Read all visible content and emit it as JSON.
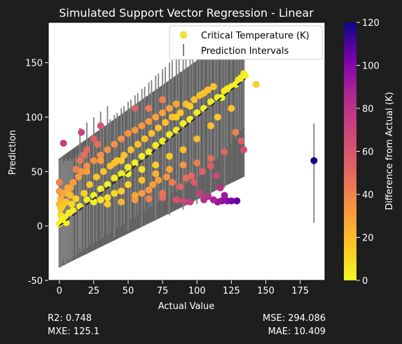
{
  "chart_data": {
    "type": "scatter",
    "title": "Simulated Support Vector Regression - Linear",
    "xlabel": "Actual Value",
    "ylabel": "Prediction",
    "xlim": [
      -8,
      193
    ],
    "ylim": [
      -50,
      187
    ],
    "xticks": [
      0,
      25,
      50,
      75,
      100,
      125,
      150,
      175
    ],
    "yticks": [
      -50,
      0,
      50,
      100,
      150
    ],
    "grid": false,
    "legend_position": "top-right",
    "legend": [
      {
        "label": "Critical Temperature (K)",
        "marker": "circle",
        "color": "#f0e040"
      },
      {
        "label": "Prediction Intervals",
        "marker": "vertical-line",
        "color": "#888888"
      }
    ],
    "reference_line": {
      "style": "dashed",
      "color": "#222222",
      "x": [
        0,
        135
      ],
      "y": [
        0,
        135
      ]
    },
    "colorbar": {
      "label": "Difference from Actual (K)",
      "min": 0,
      "max": 120,
      "ticks": [
        0,
        20,
        40,
        60,
        80,
        100,
        120
      ],
      "colormap": "plasma_r"
    },
    "points": [
      [
        0,
        2,
        2
      ],
      [
        1,
        10,
        9
      ],
      [
        0,
        20,
        20
      ],
      [
        1,
        25,
        24
      ],
      [
        2,
        18,
        16
      ],
      [
        3,
        30,
        27
      ],
      [
        4,
        8,
        4
      ],
      [
        5,
        22,
        17
      ],
      [
        6,
        35,
        29
      ],
      [
        7,
        12,
        5
      ],
      [
        8,
        28,
        20
      ],
      [
        10,
        40,
        30
      ],
      [
        10,
        14,
        4
      ],
      [
        12,
        25,
        13
      ],
      [
        14,
        45,
        31
      ],
      [
        15,
        18,
        3
      ],
      [
        16,
        50,
        34
      ],
      [
        18,
        30,
        12
      ],
      [
        20,
        24,
        4
      ],
      [
        20,
        55,
        35
      ],
      [
        22,
        38,
        16
      ],
      [
        25,
        28,
        3
      ],
      [
        25,
        60,
        35
      ],
      [
        27,
        45,
        18
      ],
      [
        30,
        34,
        4
      ],
      [
        30,
        65,
        35
      ],
      [
        32,
        50,
        18
      ],
      [
        35,
        38,
        3
      ],
      [
        35,
        70,
        35
      ],
      [
        37,
        55,
        18
      ],
      [
        40,
        44,
        4
      ],
      [
        40,
        75,
        35
      ],
      [
        42,
        60,
        18
      ],
      [
        45,
        48,
        3
      ],
      [
        45,
        80,
        35
      ],
      [
        47,
        65,
        18
      ],
      [
        50,
        54,
        4
      ],
      [
        50,
        85,
        35
      ],
      [
        52,
        70,
        18
      ],
      [
        55,
        58,
        3
      ],
      [
        55,
        88,
        33
      ],
      [
        57,
        75,
        18
      ],
      [
        60,
        64,
        4
      ],
      [
        60,
        92,
        32
      ],
      [
        62,
        80,
        18
      ],
      [
        65,
        68,
        3
      ],
      [
        65,
        96,
        31
      ],
      [
        67,
        85,
        18
      ],
      [
        70,
        74,
        4
      ],
      [
        70,
        100,
        30
      ],
      [
        72,
        90,
        18
      ],
      [
        75,
        78,
        3
      ],
      [
        75,
        104,
        29
      ],
      [
        77,
        95,
        18
      ],
      [
        80,
        84,
        4
      ],
      [
        80,
        108,
        28
      ],
      [
        82,
        100,
        18
      ],
      [
        85,
        88,
        3
      ],
      [
        85,
        112,
        27
      ],
      [
        88,
        104,
        16
      ],
      [
        90,
        94,
        4
      ],
      [
        92,
        112,
        20
      ],
      [
        95,
        98,
        3
      ],
      [
        98,
        116,
        18
      ],
      [
        100,
        104,
        4
      ],
      [
        102,
        120,
        18
      ],
      [
        105,
        108,
        3
      ],
      [
        108,
        125,
        17
      ],
      [
        110,
        114,
        4
      ],
      [
        112,
        128,
        16
      ],
      [
        115,
        118,
        3
      ],
      [
        118,
        118,
        0
      ],
      [
        120,
        124,
        4
      ],
      [
        122,
        126,
        4
      ],
      [
        125,
        128,
        3
      ],
      [
        128,
        130,
        2
      ],
      [
        130,
        134,
        4
      ],
      [
        132,
        136,
        4
      ],
      [
        134,
        140,
        6
      ],
      [
        135,
        138,
        3
      ],
      [
        30,
        24,
        6
      ],
      [
        40,
        30,
        10
      ],
      [
        50,
        38,
        12
      ],
      [
        60,
        42,
        18
      ],
      [
        70,
        48,
        22
      ],
      [
        80,
        52,
        28
      ],
      [
        90,
        56,
        34
      ],
      [
        100,
        58,
        42
      ],
      [
        110,
        62,
        48
      ],
      [
        120,
        68,
        52
      ],
      [
        35,
        20,
        15
      ],
      [
        45,
        22,
        23
      ],
      [
        55,
        24,
        31
      ],
      [
        65,
        25,
        40
      ],
      [
        75,
        26,
        49
      ],
      [
        85,
        24,
        61
      ],
      [
        95,
        22,
        73
      ],
      [
        105,
        24,
        81
      ],
      [
        115,
        22,
        93
      ],
      [
        125,
        23,
        102
      ],
      [
        20,
        50,
        30
      ],
      [
        30,
        60,
        30
      ],
      [
        40,
        58,
        18
      ],
      [
        50,
        48,
        2
      ],
      [
        60,
        52,
        8
      ],
      [
        70,
        56,
        14
      ],
      [
        80,
        64,
        16
      ],
      [
        90,
        70,
        20
      ],
      [
        100,
        80,
        20
      ],
      [
        110,
        92,
        18
      ],
      [
        10,
        40,
        30
      ],
      [
        15,
        60,
        45
      ],
      [
        20,
        70,
        50
      ],
      [
        25,
        80,
        55
      ],
      [
        8,
        35,
        27
      ],
      [
        12,
        52,
        40
      ],
      [
        18,
        65,
        47
      ],
      [
        28,
        75,
        47
      ],
      [
        3,
        76,
        73
      ],
      [
        16,
        86,
        70
      ],
      [
        30,
        92,
        62
      ],
      [
        45,
        60,
        15
      ],
      [
        55,
        108,
        53
      ],
      [
        65,
        108,
        43
      ],
      [
        75,
        116,
        41
      ],
      [
        85,
        100,
        15
      ],
      [
        95,
        110,
        15
      ],
      [
        105,
        122,
        17
      ],
      [
        115,
        100,
        15
      ],
      [
        125,
        108,
        17
      ],
      [
        128,
        86,
        42
      ],
      [
        132,
        78,
        54
      ],
      [
        134,
        70,
        64
      ],
      [
        143,
        130,
        13
      ],
      [
        114,
        46,
        68
      ],
      [
        117,
        35,
        82
      ],
      [
        120,
        28,
        92
      ],
      [
        98,
        40,
        58
      ],
      [
        102,
        30,
        72
      ],
      [
        108,
        27,
        81
      ],
      [
        112,
        24,
        88
      ],
      [
        118,
        23,
        95
      ],
      [
        122,
        23,
        99
      ],
      [
        129,
        23,
        106
      ],
      [
        85,
        24,
        61
      ],
      [
        90,
        23,
        67
      ],
      [
        75,
        30,
        45
      ],
      [
        65,
        33,
        32
      ],
      [
        55,
        28,
        27
      ],
      [
        45,
        32,
        13
      ],
      [
        35,
        26,
        9
      ],
      [
        25,
        22,
        3
      ],
      [
        0,
        32,
        32
      ],
      [
        0,
        40,
        40
      ],
      [
        1,
        16,
        15
      ],
      [
        2,
        6,
        4
      ],
      [
        5,
        3,
        2
      ],
      [
        3,
        20,
        17
      ],
      [
        6,
        30,
        24
      ],
      [
        9,
        20,
        11
      ],
      [
        60,
        30,
        30
      ],
      [
        68,
        38,
        30
      ],
      [
        72,
        42,
        30
      ],
      [
        78,
        45,
        33
      ],
      [
        82,
        40,
        42
      ],
      [
        88,
        36,
        52
      ],
      [
        92,
        44,
        48
      ],
      [
        96,
        46,
        50
      ],
      [
        104,
        50,
        54
      ],
      [
        110,
        55,
        55
      ],
      [
        185,
        60,
        125
      ]
    ],
    "error_bars": {
      "color": "#808080",
      "ranges": [
        [
          0,
          -36,
          60
        ],
        [
          1,
          -38,
          62
        ],
        [
          2,
          -35,
          62
        ],
        [
          3,
          -30,
          58
        ],
        [
          4,
          -36,
          60
        ],
        [
          5,
          -34,
          62
        ],
        [
          6,
          -30,
          60
        ],
        [
          7,
          -33,
          60
        ],
        [
          8,
          -32,
          62
        ],
        [
          9,
          -30,
          60
        ],
        [
          10,
          -28,
          62
        ],
        [
          12,
          -28,
          64
        ],
        [
          14,
          -26,
          66
        ],
        [
          16,
          -24,
          68
        ],
        [
          18,
          -22,
          72
        ],
        [
          20,
          -20,
          76
        ],
        [
          22,
          -18,
          78
        ],
        [
          25,
          -16,
          82
        ],
        [
          27,
          -14,
          84
        ],
        [
          30,
          -12,
          90
        ],
        [
          32,
          -10,
          92
        ],
        [
          35,
          -8,
          96
        ],
        [
          37,
          -6,
          98
        ],
        [
          40,
          -4,
          102
        ],
        [
          42,
          -2,
          104
        ],
        [
          45,
          0,
          108
        ],
        [
          47,
          2,
          110
        ],
        [
          50,
          4,
          114
        ],
        [
          52,
          6,
          116
        ],
        [
          55,
          8,
          120
        ],
        [
          57,
          10,
          122
        ],
        [
          60,
          12,
          126
        ],
        [
          62,
          14,
          128
        ],
        [
          65,
          16,
          132
        ],
        [
          67,
          18,
          134
        ],
        [
          70,
          20,
          138
        ],
        [
          72,
          22,
          140
        ],
        [
          75,
          24,
          144
        ],
        [
          77,
          26,
          146
        ],
        [
          80,
          28,
          150
        ],
        [
          82,
          30,
          152
        ],
        [
          85,
          32,
          156
        ],
        [
          87,
          34,
          158
        ],
        [
          90,
          36,
          162
        ],
        [
          92,
          38,
          164
        ],
        [
          95,
          40,
          168
        ],
        [
          97,
          42,
          170
        ],
        [
          100,
          44,
          174
        ],
        [
          102,
          46,
          176
        ],
        [
          105,
          50,
          178
        ],
        [
          108,
          54,
          180
        ],
        [
          110,
          56,
          182
        ],
        [
          113,
          60,
          180
        ],
        [
          115,
          62,
          178
        ],
        [
          118,
          66,
          176
        ],
        [
          120,
          70,
          172
        ],
        [
          122,
          72,
          168
        ],
        [
          125,
          76,
          166
        ],
        [
          128,
          80,
          164
        ],
        [
          130,
          84,
          160
        ],
        [
          132,
          88,
          156
        ],
        [
          134,
          90,
          160
        ],
        [
          15,
          -20,
          90
        ],
        [
          20,
          -15,
          95
        ],
        [
          25,
          -10,
          100
        ],
        [
          30,
          -5,
          105
        ],
        [
          35,
          0,
          110
        ],
        [
          40,
          -10,
          95
        ],
        [
          50,
          -5,
          100
        ],
        [
          60,
          0,
          110
        ],
        [
          70,
          5,
          115
        ],
        [
          80,
          10,
          125
        ],
        [
          90,
          15,
          130
        ],
        [
          100,
          20,
          135
        ],
        [
          110,
          25,
          140
        ],
        [
          120,
          35,
          150
        ],
        [
          185,
          3,
          94
        ]
      ]
    }
  },
  "metrics": {
    "r2": "R2: 0.748",
    "mxe": "MXE: 125.1",
    "mse": "MSE: 294.086",
    "mae": "MAE: 10.409"
  }
}
